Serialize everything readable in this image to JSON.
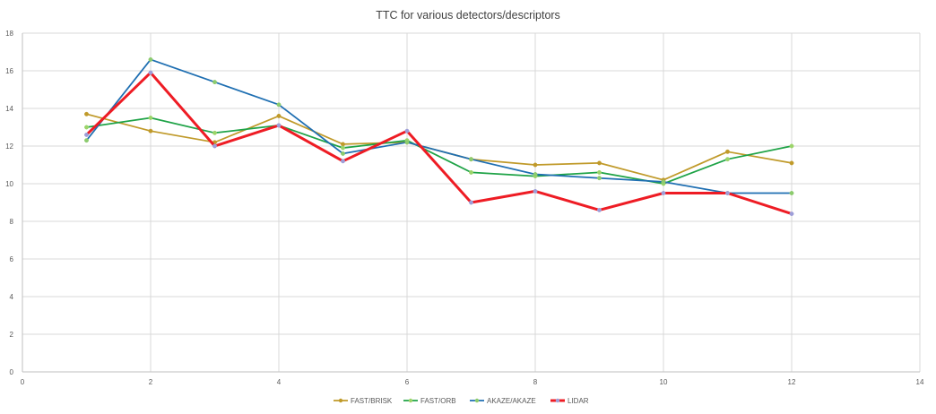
{
  "chart_data": {
    "type": "scatter",
    "mode": "lines+markers",
    "title": "TTC for various detectors/descriptors",
    "xlabel": "",
    "ylabel": "",
    "xlim": [
      0,
      14
    ],
    "ylim": [
      0,
      18
    ],
    "x_ticks": [
      0,
      2,
      4,
      6,
      8,
      10,
      12,
      14
    ],
    "y_ticks": [
      0,
      2,
      4,
      6,
      8,
      10,
      12,
      14,
      16,
      18
    ],
    "grid": true,
    "legend_position": "bottom",
    "series": [
      {
        "name": "FAST/BRISK",
        "color": "#C09A2A",
        "marker_color": "#C09A2A",
        "x": [
          1,
          2,
          3,
          4,
          5,
          6,
          7,
          8,
          9,
          10,
          11,
          12
        ],
        "y": [
          13.7,
          12.8,
          12.2,
          13.6,
          12.1,
          12.2,
          11.3,
          11.0,
          11.1,
          10.2,
          11.7,
          11.1
        ]
      },
      {
        "name": "FAST/ORB",
        "color": "#1FA347",
        "marker_color": "#9BD46A",
        "x": [
          1,
          2,
          3,
          4,
          5,
          6,
          7,
          8,
          9,
          10,
          11,
          12
        ],
        "y": [
          13.0,
          13.5,
          12.7,
          13.1,
          11.9,
          12.3,
          10.6,
          10.4,
          10.6,
          10.0,
          11.3,
          12.0
        ]
      },
      {
        "name": "AKAZE/AKAZE",
        "color": "#1F6FB2",
        "marker_color": "#8CCB6E",
        "x": [
          1,
          2,
          3,
          4,
          5,
          6,
          7,
          8,
          9,
          10,
          11,
          12
        ],
        "y": [
          12.3,
          16.6,
          15.4,
          14.2,
          11.6,
          12.2,
          11.3,
          10.5,
          10.3,
          10.1,
          9.5,
          9.5
        ]
      },
      {
        "name": "LIDAR",
        "color": "#EE1C24",
        "marker_color": "#9E9ED8",
        "line_width": 3,
        "x": [
          1,
          2,
          3,
          4,
          5,
          6,
          7,
          8,
          9,
          10,
          11,
          12
        ],
        "y": [
          12.6,
          15.9,
          12.0,
          13.1,
          11.2,
          12.8,
          9.0,
          9.6,
          8.6,
          9.5,
          9.5,
          8.4
        ]
      }
    ]
  }
}
